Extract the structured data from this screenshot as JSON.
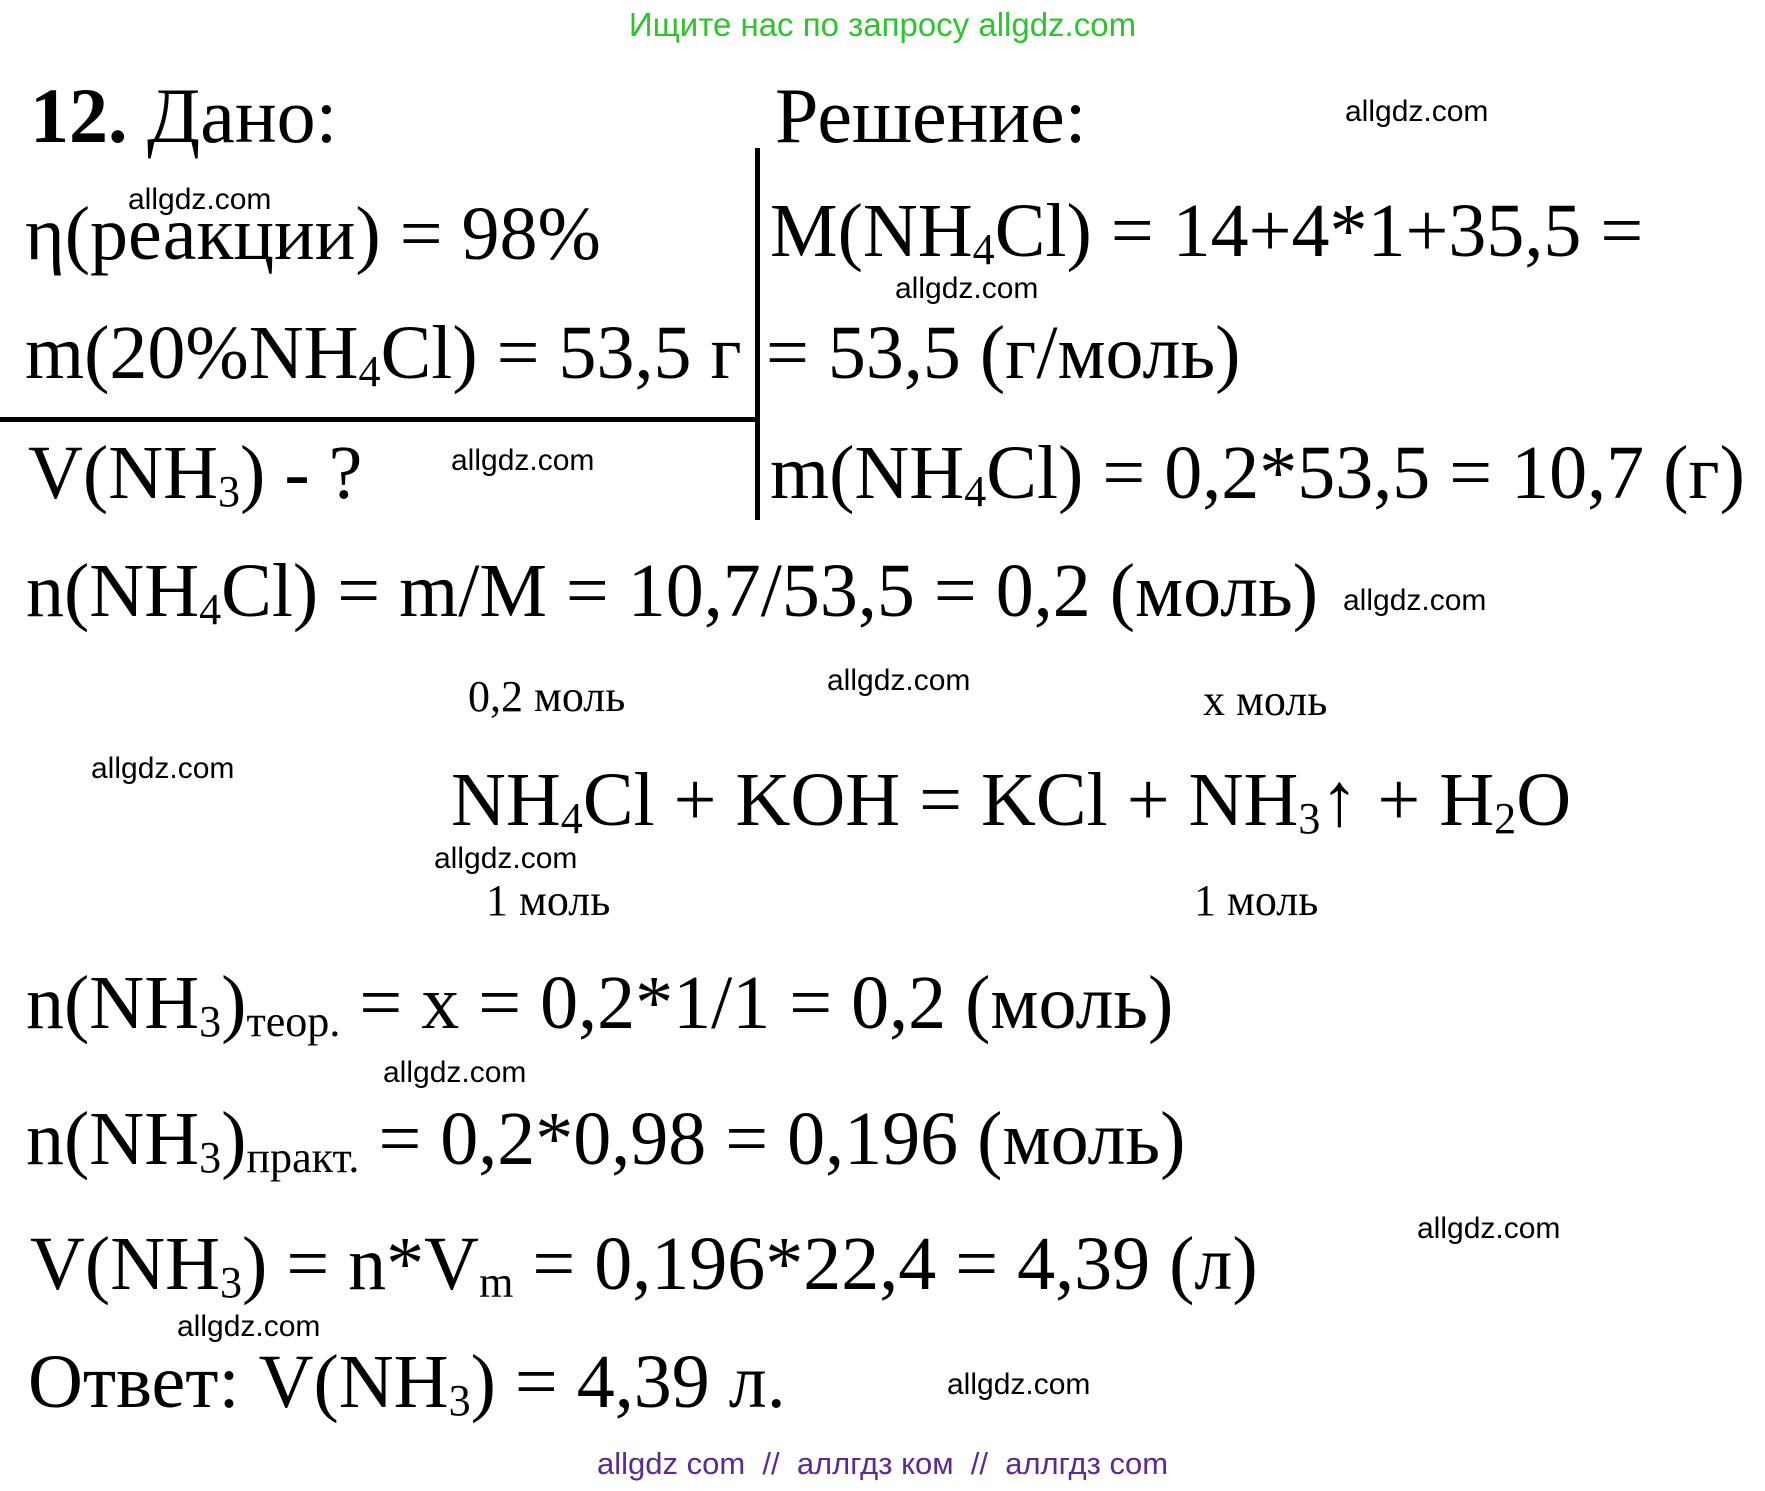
{
  "header": {
    "promo": "Ищите нас по запросу allgdz.com"
  },
  "watermark": "allgdz.com",
  "problem": {
    "heading_given": [
      {
        "t": "12.",
        "b": 1
      },
      {
        "t": " Дано:"
      }
    ],
    "heading_solution": [
      {
        "t": "Решение:"
      }
    ],
    "given": {
      "eta": [
        {
          "t": "η(реакции) = 98%"
        }
      ],
      "mass": [
        {
          "t": "m(20%NH"
        },
        {
          "t": "4",
          "s": 1
        },
        {
          "t": "Cl) = 53,5 г"
        }
      ],
      "find": [
        {
          "t": "V(NH"
        },
        {
          "t": "3",
          "s": 1
        },
        {
          "t": ") - ?"
        }
      ]
    },
    "solution": {
      "molar_mass": [
        {
          "t": "M(NH"
        },
        {
          "t": "4",
          "s": 1
        },
        {
          "t": "Cl) = 14+4*1+35,5 ="
        }
      ],
      "molar_mass_cont": [
        {
          "t": "= 53,5 (г/моль)"
        }
      ],
      "mass": [
        {
          "t": "m(NH"
        },
        {
          "t": "4",
          "s": 1
        },
        {
          "t": "Cl) = 0,2*53,5 = 10,7 (г)"
        }
      ],
      "moles": [
        {
          "t": "n(NH"
        },
        {
          "t": "4",
          "s": 1
        },
        {
          "t": "Cl) = m/M = 10,7/53,5 = 0,2 (моль)"
        }
      ],
      "label_above_left": "0,2 моль",
      "label_above_right": "х моль",
      "equation": [
        {
          "t": "NH"
        },
        {
          "t": "4",
          "s": 1
        },
        {
          "t": "Cl + KOH = KCl + NH"
        },
        {
          "t": "3",
          "s": 1
        },
        {
          "t": "↑ + H"
        },
        {
          "t": "2",
          "s": 1
        },
        {
          "t": "O"
        }
      ],
      "label_below_left": "1 моль",
      "label_below_right": "1 моль",
      "n_theoretical": [
        {
          "t": "n(NH"
        },
        {
          "t": "3",
          "s": 1
        },
        {
          "t": ")"
        },
        {
          "t": "теор.",
          "s": 1
        },
        {
          "t": " = х = 0,2*1/1 = 0,2 (моль)"
        }
      ],
      "n_practical": [
        {
          "t": "n(NH"
        },
        {
          "t": "3",
          "s": 1
        },
        {
          "t": ")"
        },
        {
          "t": "практ.",
          "s": 1
        },
        {
          "t": " = 0,2*0,98 = 0,196 (моль)"
        }
      ],
      "volume": [
        {
          "t": "V(NH"
        },
        {
          "t": "3",
          "s": 1
        },
        {
          "t": ") = n*V"
        },
        {
          "t": "m",
          "s": 1
        },
        {
          "t": " = 0,196*22,4 = 4,39 (л)"
        }
      ],
      "answer": [
        {
          "t": "Ответ: V(NH"
        },
        {
          "t": "3",
          "s": 1
        },
        {
          "t": ") = 4,39 л."
        }
      ]
    }
  },
  "footer": {
    "sites": "allgdz com  //  аллгдз ком  //  аллгдз com"
  },
  "colors": {
    "text": "#000000",
    "promo_green": "#2dc42d",
    "footer_purple": "#5b2b91",
    "background": "#ffffff"
  }
}
